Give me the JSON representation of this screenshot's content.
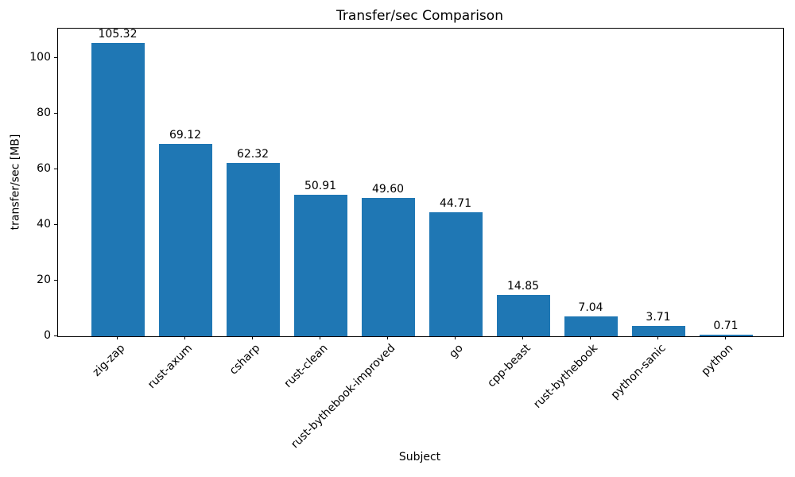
{
  "chart_data": {
    "type": "bar",
    "title": "Transfer/sec Comparison",
    "xlabel": "Subject",
    "ylabel": "transfer/sec [MB]",
    "categories": [
      "zig-zap",
      "rust-axum",
      "csharp",
      "rust-clean",
      "rust-bythebook-improved",
      "go",
      "cpp-beast",
      "rust-bythebook",
      "python-sanic",
      "python"
    ],
    "values": [
      105.32,
      69.12,
      62.32,
      50.91,
      49.6,
      44.71,
      14.85,
      7.04,
      3.71,
      0.71
    ],
    "value_labels": [
      "105.32",
      "69.12",
      "62.32",
      "50.91",
      "49.60",
      "44.71",
      "14.85",
      "7.04",
      "3.71",
      "0.71"
    ],
    "yticks": [
      0,
      20,
      40,
      60,
      80,
      100
    ],
    "ylim": [
      0,
      110.59
    ],
    "xtick_rotation_deg": 45,
    "grid": false,
    "legend": false,
    "bar_color": "#1f77b4",
    "text_color": "#000000"
  }
}
